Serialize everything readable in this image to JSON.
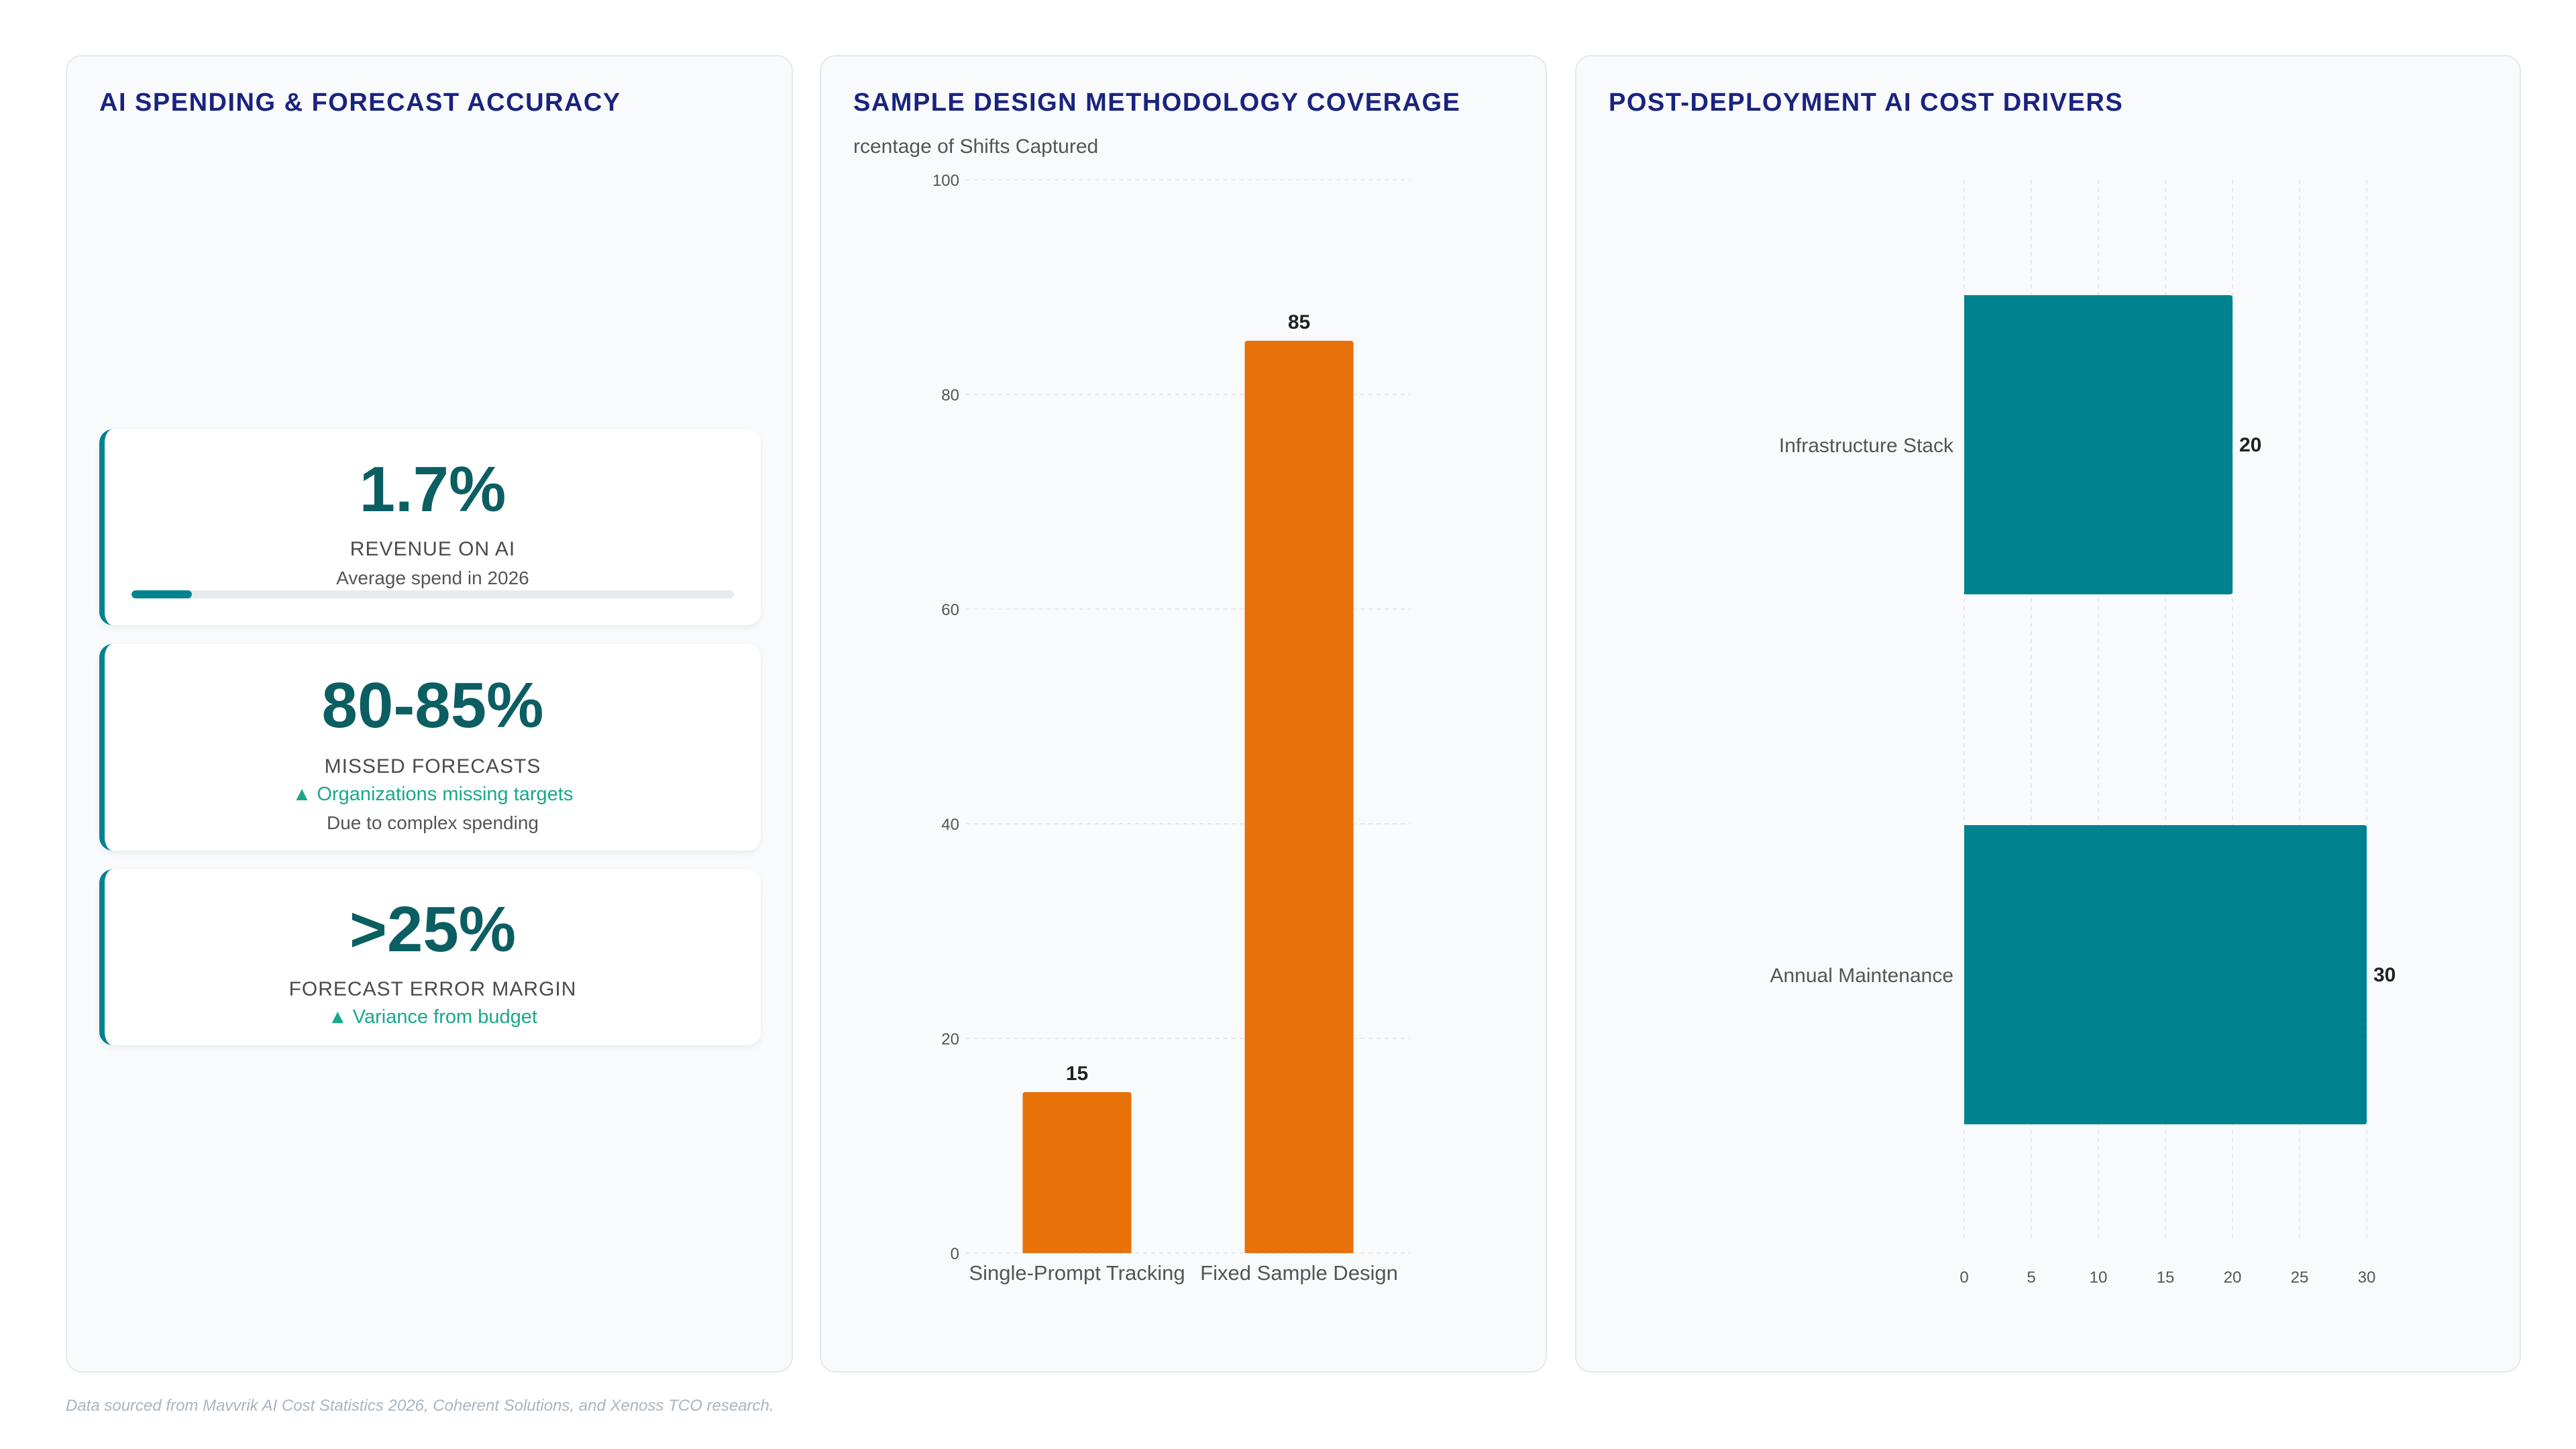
{
  "panels": {
    "spending": {
      "title": "AI SPENDING & FORECAST ACCURACY",
      "kpis": [
        {
          "value": "1.7%",
          "label": "REVENUE ON AI",
          "subtext": "Average spend in 2026",
          "progress_percent": 10
        },
        {
          "value": "80-85%",
          "label": "MISSED FORECASTS",
          "trend": "▲ Organizations missing targets",
          "subtext": "Due to complex spending"
        },
        {
          "value": ">25%",
          "label": "FORECAST ERROR MARGIN",
          "trend": "▲ Variance from budget"
        }
      ]
    },
    "methodology": {
      "title": "SAMPLE DESIGN METHODOLOGY COVERAGE"
    },
    "cost_drivers": {
      "title": "POST-DEPLOYMENT AI COST DRIVERS"
    }
  },
  "chart_data": [
    {
      "type": "bar",
      "orientation": "vertical",
      "categories": [
        "Single-Prompt Tracking",
        "Fixed Sample Design"
      ],
      "values": [
        15,
        85
      ],
      "ylabel": "rcentage of Shifts Captured",
      "ylim": [
        0,
        100
      ],
      "yticks": [
        "0",
        "20",
        "40",
        "60",
        "80",
        "100"
      ],
      "grid": true,
      "color": "#e8710a"
    },
    {
      "type": "bar",
      "orientation": "horizontal",
      "categories": [
        "Infrastructure Stack",
        "Annual Maintenance"
      ],
      "values": [
        20,
        30
      ],
      "xlim": [
        0,
        30
      ],
      "xticks": [
        "0",
        "5",
        "10",
        "15",
        "20",
        "25",
        "30"
      ],
      "grid": true,
      "color": "#00838f"
    }
  ],
  "footnote": "Data sourced from Mavvrik AI Cost Statistics 2026, Coherent Solutions, and Xenoss TCO research."
}
